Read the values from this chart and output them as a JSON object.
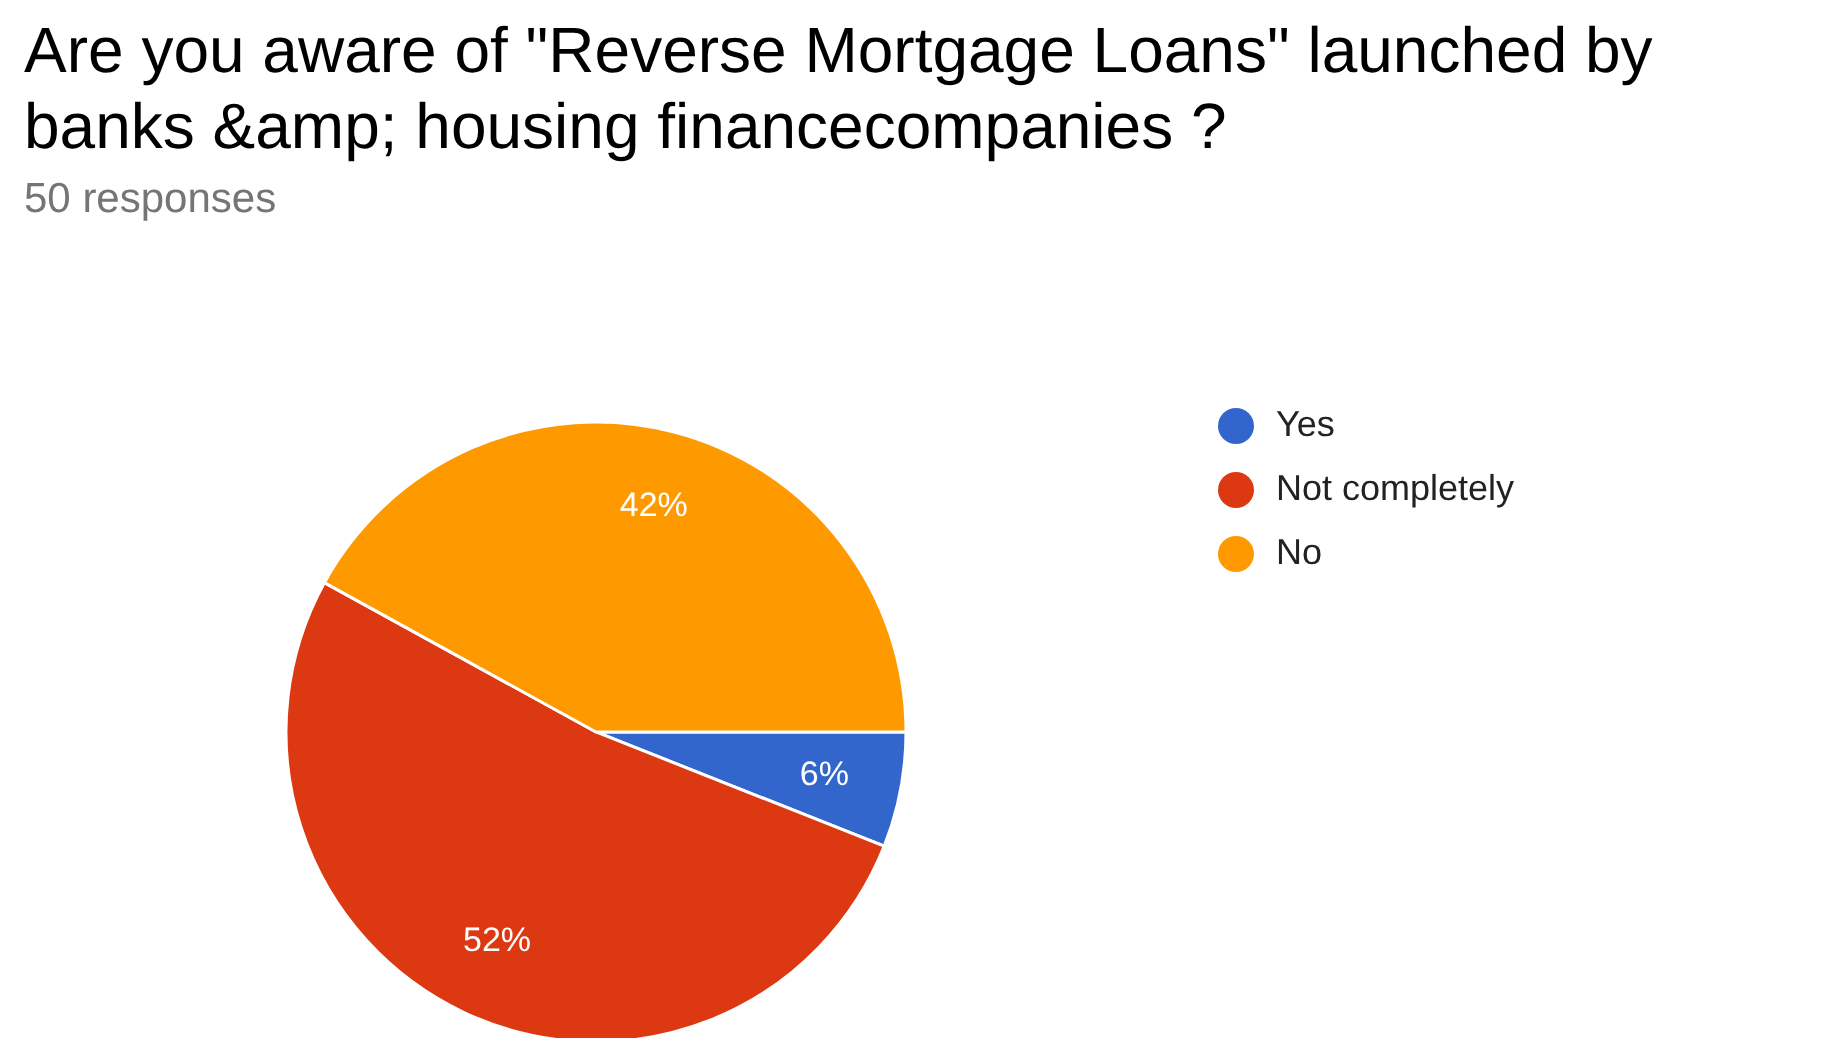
{
  "chart_data": {
    "type": "pie",
    "title": "Are you aware of \"Reverse Mortgage Loans\" launched by banks &amp; housing financecompanies ?",
    "subtitle": "50 responses",
    "categories": [
      "Yes",
      "Not completely",
      "No"
    ],
    "values": [
      6,
      52,
      42
    ],
    "colors": [
      "#3366cc",
      "#dc3912",
      "#ff9900"
    ],
    "value_labels": [
      "6%",
      "52%",
      "42%"
    ],
    "legend": "right"
  }
}
